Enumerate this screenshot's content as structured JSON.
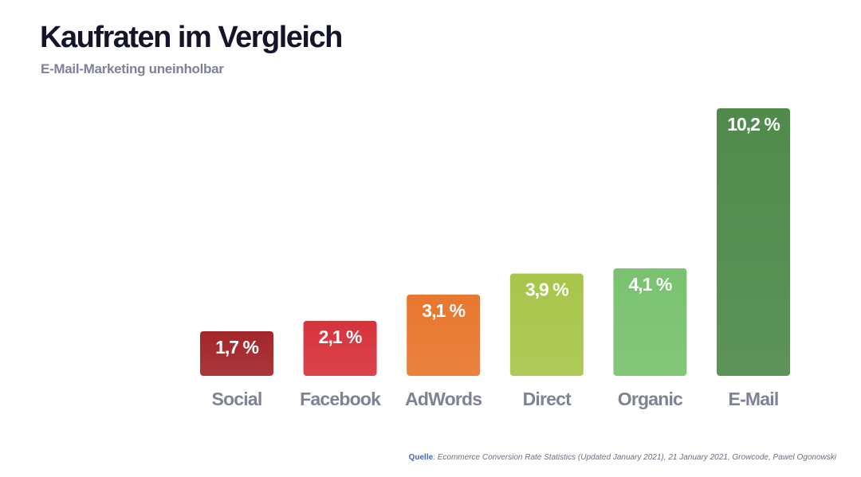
{
  "header": {
    "title": "Kaufraten im Vergleich",
    "subtitle": "E-Mail-Marketing uneinholbar"
  },
  "source": {
    "label": "Quelle",
    "text": ": Ecommerce Conversion Rate Statistics (Updated January 2021), 21 January 2021, Growcode, Pawel Ogonowski"
  },
  "chart_data": {
    "type": "bar",
    "title": "Kaufraten im Vergleich",
    "subtitle": "E-Mail-Marketing uneinholbar",
    "xlabel": "",
    "ylabel": "",
    "categories": [
      "Social",
      "Facebook",
      "AdWords",
      "Direct",
      "Organic",
      "E-Mail"
    ],
    "values": [
      1.7,
      2.1,
      3.1,
      3.9,
      4.1,
      10.2
    ],
    "value_labels": [
      "1,7 %",
      "2,1 %",
      "3,1 %",
      "3,9 %",
      "4,1 %",
      "10,2 %"
    ],
    "colors": [
      "#a3262a",
      "#d7333c",
      "#e8772e",
      "#a8c54a",
      "#79c26f",
      "#4f8a4b"
    ],
    "ylim": [
      0,
      10.2
    ],
    "grid": false,
    "legend": "none"
  }
}
